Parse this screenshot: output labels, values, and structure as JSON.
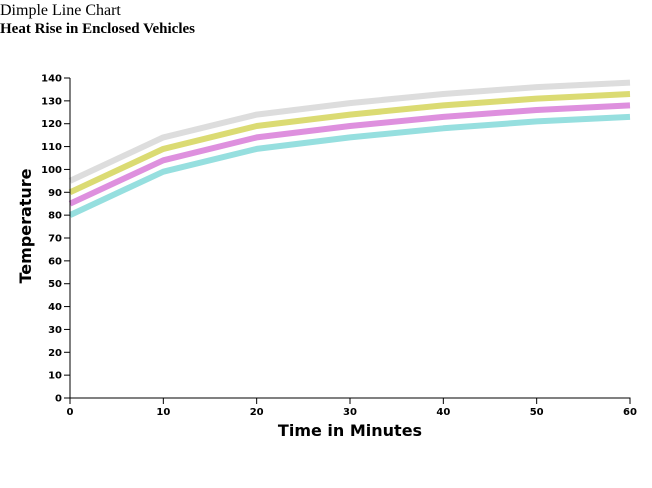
{
  "page": {
    "heading": "Dimple Line Chart"
  },
  "chart_data": {
    "type": "line",
    "title": "Heat Rise in Enclosed Vehicles",
    "xlabel": "Time in Minutes",
    "ylabel": "Temperature",
    "x": [
      0,
      10,
      20,
      30,
      40,
      50,
      60
    ],
    "xlim": [
      0,
      60
    ],
    "ylim": [
      0,
      140
    ],
    "x_ticks": [
      0,
      10,
      20,
      30,
      40,
      50,
      60
    ],
    "y_ticks": [
      0,
      10,
      20,
      30,
      40,
      50,
      60,
      70,
      80,
      90,
      100,
      110,
      120,
      130,
      140
    ],
    "grid": false,
    "series": [
      {
        "values": [
          95,
          114,
          124,
          129,
          133,
          136,
          138
        ],
        "color": "#dddddd"
      },
      {
        "values": [
          90,
          109,
          119,
          124,
          128,
          131,
          133
        ],
        "color": "#dbdb73"
      },
      {
        "values": [
          85,
          104,
          114,
          119,
          123,
          126,
          128
        ],
        "color": "#de90de"
      },
      {
        "values": [
          80,
          99,
          109,
          114,
          118,
          121,
          123
        ],
        "color": "#96dfdf"
      }
    ]
  }
}
